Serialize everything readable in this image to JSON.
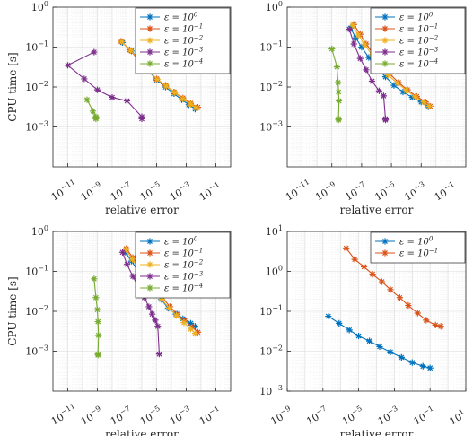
{
  "figure": {
    "xlabel": "relative error",
    "ylabel": "CPU time [s]"
  },
  "chart_data": [
    {
      "type": "line",
      "xscale": "log",
      "yscale": "log",
      "xlim_exp": [
        -12,
        0
      ],
      "ylim_exp": [
        -4,
        0
      ],
      "x_tick_labels": [
        "10^-11",
        "10^-9",
        "10^-7",
        "10^-5",
        "10^-3",
        "10^-1"
      ],
      "y_tick_labels": [
        "10^-3",
        "10^-2",
        "10^-1",
        "10^0"
      ],
      "xlabel": "relative error",
      "ylabel": "CPU time [s]",
      "grid": true,
      "legend_position": "top-right",
      "series": [
        {
          "name": "ε = 10^0",
          "color": "#0072BD",
          "points": [
            [
              5e-08,
              0.13
            ],
            [
              2e-07,
              0.08
            ],
            [
              8e-07,
              0.045
            ],
            [
              3e-06,
              0.025
            ],
            [
              1e-05,
              0.015
            ],
            [
              4e-05,
              0.01
            ],
            [
              0.00015,
              0.0068
            ],
            [
              0.0005,
              0.0048
            ],
            [
              0.0015,
              0.0036
            ],
            [
              0.004,
              0.0028
            ]
          ]
        },
        {
          "name": "ε = 10^-1",
          "color": "#D95319",
          "points": [
            [
              4e-08,
              0.14
            ],
            [
              1.5e-07,
              0.085
            ],
            [
              6e-07,
              0.048
            ],
            [
              2.5e-06,
              0.027
            ],
            [
              1e-05,
              0.016
            ],
            [
              4e-05,
              0.011
            ],
            [
              0.00015,
              0.0075
            ],
            [
              0.0006,
              0.0053
            ],
            [
              0.002,
              0.0039
            ],
            [
              0.006,
              0.0031
            ]
          ]
        },
        {
          "name": "ε = 10^-2",
          "color": "#EDB120",
          "points": [
            [
              4.5e-08,
              0.135
            ],
            [
              1.8e-07,
              0.082
            ],
            [
              7e-07,
              0.046
            ],
            [
              2.8e-06,
              0.026
            ],
            [
              1.1e-05,
              0.0155
            ],
            [
              4.5e-05,
              0.0105
            ],
            [
              0.00017,
              0.0072
            ],
            [
              0.0006,
              0.005
            ],
            [
              0.002,
              0.0037
            ],
            [
              0.005,
              0.003
            ]
          ]
        },
        {
          "name": "ε = 10^-3",
          "color": "#7E2F8E",
          "points": [
            [
              6e-10,
              0.075
            ],
            [
              1e-11,
              0.035
            ],
            [
              1.3e-10,
              0.016
            ],
            [
              1e-09,
              0.0085
            ],
            [
              1e-08,
              0.0055
            ],
            [
              1e-07,
              0.0045
            ],
            [
              1e-06,
              0.0018
            ],
            [
              1e-06,
              0.0016
            ]
          ]
        },
        {
          "name": "ε = 10^-4",
          "color": "#77AC30",
          "points": [
            [
              2e-10,
              0.0048
            ],
            [
              5e-10,
              0.0025
            ],
            [
              8e-10,
              0.0018
            ],
            [
              8e-10,
              0.0017
            ],
            [
              8e-10,
              0.0016
            ]
          ]
        }
      ]
    },
    {
      "type": "line",
      "xscale": "log",
      "yscale": "log",
      "xlim_exp": [
        -12,
        0
      ],
      "ylim_exp": [
        -4,
        0
      ],
      "x_tick_labels": [
        "10^-11",
        "10^-9",
        "10^-7",
        "10^-5",
        "10^-3",
        "10^-1"
      ],
      "y_tick_labels": [
        "10^-3",
        "10^-2",
        "10^-1",
        "10^0"
      ],
      "xlabel": "relative error",
      "ylabel": "",
      "grid": true,
      "legend_position": "top-right",
      "series": [
        {
          "name": "ε = 10^0",
          "color": "#0072BD",
          "points": [
            [
              1.8e-08,
              0.3
            ],
            [
              4e-08,
              0.17
            ],
            [
              1e-07,
              0.1
            ],
            [
              3e-07,
              0.055
            ],
            [
              1e-06,
              0.03
            ],
            [
              4e-06,
              0.018
            ],
            [
              1.5e-05,
              0.011
            ],
            [
              6e-05,
              0.0075
            ],
            [
              0.00025,
              0.0055
            ],
            [
              0.001,
              0.0042
            ],
            [
              0.003,
              0.0032
            ]
          ]
        },
        {
          "name": "ε = 10^-1",
          "color": "#D95319",
          "points": [
            [
              3e-08,
              0.37
            ],
            [
              8e-08,
              0.21
            ],
            [
              2e-07,
              0.12
            ],
            [
              6e-07,
              0.068
            ],
            [
              2e-06,
              0.037
            ],
            [
              8e-06,
              0.021
            ],
            [
              3e-05,
              0.013
            ],
            [
              0.00012,
              0.0085
            ],
            [
              0.0005,
              0.0058
            ],
            [
              0.002,
              0.0042
            ],
            [
              0.004,
              0.0033
            ]
          ]
        },
        {
          "name": "ε = 10^-2",
          "color": "#EDB120",
          "points": [
            [
              2.5e-08,
              0.35
            ],
            [
              6e-08,
              0.2
            ],
            [
              1.6e-07,
              0.115
            ],
            [
              5e-07,
              0.065
            ],
            [
              1.6e-06,
              0.035
            ],
            [
              6e-06,
              0.02
            ],
            [
              2.5e-05,
              0.0125
            ],
            [
              0.0001,
              0.0082
            ],
            [
              0.0004,
              0.0057
            ],
            [
              0.0015,
              0.0042
            ],
            [
              0.0035,
              0.0033
            ]
          ]
        },
        {
          "name": "ε = 10^-3",
          "color": "#7E2F8E",
          "points": [
            [
              1.5e-08,
              0.28
            ],
            [
              3e-08,
              0.12
            ],
            [
              8e-08,
              0.052
            ],
            [
              2e-07,
              0.027
            ],
            [
              5e-07,
              0.014
            ],
            [
              1.5e-06,
              0.008
            ],
            [
              3e-06,
              0.006
            ],
            [
              4e-06,
              0.0016
            ],
            [
              4e-06,
              0.0015
            ]
          ]
        },
        {
          "name": "ε = 10^-4",
          "color": "#77AC30",
          "points": [
            [
              1e-09,
              0.09
            ],
            [
              2.2e-09,
              0.032
            ],
            [
              2.6e-09,
              0.013
            ],
            [
              2.8e-09,
              0.0075
            ],
            [
              3e-09,
              0.0045
            ],
            [
              2.8e-09,
              0.0016
            ],
            [
              2.8e-09,
              0.0015
            ]
          ]
        }
      ]
    },
    {
      "type": "line",
      "xscale": "log",
      "yscale": "log",
      "xlim_exp": [
        -12,
        0
      ],
      "ylim_exp": [
        -4,
        0
      ],
      "x_tick_labels": [
        "10^-11",
        "10^-9",
        "10^-7",
        "10^-5",
        "10^-3",
        "10^-1"
      ],
      "y_tick_labels": [
        "10^-3",
        "10^-2",
        "10^-1",
        "10^0"
      ],
      "xlabel": "relative error",
      "ylabel": "CPU time [s]",
      "grid": true,
      "legend_position": "top-right",
      "series": [
        {
          "name": "ε = 10^0",
          "color": "#0072BD",
          "points": [
            [
              8e-08,
              0.3
            ],
            [
              2e-07,
              0.18
            ],
            [
              6e-07,
              0.1
            ],
            [
              2e-06,
              0.058
            ],
            [
              6e-06,
              0.033
            ],
            [
              2e-05,
              0.02
            ],
            [
              6e-05,
              0.012
            ],
            [
              0.0002,
              0.0085
            ],
            [
              0.0006,
              0.0065
            ],
            [
              0.002,
              0.005
            ],
            [
              0.004,
              0.0042
            ]
          ]
        },
        {
          "name": "ε = 10^-1",
          "color": "#D95319",
          "points": [
            [
              9e-08,
              0.37
            ],
            [
              2.5e-07,
              0.22
            ],
            [
              8e-07,
              0.12
            ],
            [
              2.5e-06,
              0.068
            ],
            [
              8e-06,
              0.038
            ],
            [
              2.5e-05,
              0.022
            ],
            [
              8e-05,
              0.013
            ],
            [
              0.00025,
              0.0085
            ],
            [
              0.0008,
              0.0058
            ],
            [
              0.0025,
              0.004
            ],
            [
              0.006,
              0.003
            ]
          ]
        },
        {
          "name": "ε = 10^-2",
          "color": "#EDB120",
          "points": [
            [
              8.5e-08,
              0.35
            ],
            [
              2.3e-07,
              0.2
            ],
            [
              7e-07,
              0.11
            ],
            [
              2.2e-06,
              0.062
            ],
            [
              7e-06,
              0.035
            ],
            [
              2.2e-05,
              0.02
            ],
            [
              7e-05,
              0.012
            ],
            [
              0.00022,
              0.0078
            ],
            [
              0.0007,
              0.0052
            ],
            [
              0.002,
              0.0036
            ],
            [
              0.004,
              0.0028
            ]
          ]
        },
        {
          "name": "ε = 10^-3",
          "color": "#7E2F8E",
          "points": [
            [
              5e-08,
              0.3
            ],
            [
              1e-07,
              0.15
            ],
            [
              2.5e-07,
              0.075
            ],
            [
              6e-07,
              0.04
            ],
            [
              1.5e-06,
              0.022
            ],
            [
              3e-06,
              0.013
            ],
            [
              5e-06,
              0.0085
            ],
            [
              8e-06,
              0.006
            ],
            [
              1.2e-05,
              0.0042
            ],
            [
              1.5e-05,
              0.00085
            ]
          ]
        },
        {
          "name": "ε = 10^-4",
          "color": "#77AC30",
          "points": [
            [
              6e-10,
              0.065
            ],
            [
              8e-10,
              0.022
            ],
            [
              1e-09,
              0.011
            ],
            [
              1.1e-09,
              0.0055
            ],
            [
              1.2e-09,
              0.0025
            ],
            [
              1.1e-09,
              0.00085
            ],
            [
              1.1e-09,
              0.0008
            ]
          ]
        }
      ]
    },
    {
      "type": "line",
      "xscale": "log",
      "yscale": "log",
      "xlim_exp": [
        -9,
        1
      ],
      "ylim_exp": [
        -3,
        1
      ],
      "x_tick_labels": [
        "10^-9",
        "10^-7",
        "10^-5",
        "10^-3",
        "10^-1",
        "10^1"
      ],
      "y_tick_labels": [
        "10^-3",
        "10^-2",
        "10^-1",
        "10^0",
        "10^1"
      ],
      "xlabel": "relative error",
      "ylabel": "",
      "grid": true,
      "legend_position": "top-right",
      "series": [
        {
          "name": "ε = 10^0",
          "color": "#0072BD",
          "points": [
            [
              2e-07,
              0.075
            ],
            [
              8e-07,
              0.05
            ],
            [
              3e-06,
              0.034
            ],
            [
              1e-05,
              0.024
            ],
            [
              4e-05,
              0.018
            ],
            [
              0.00015,
              0.013
            ],
            [
              0.0006,
              0.0095
            ],
            [
              0.0025,
              0.007
            ],
            [
              0.01,
              0.0052
            ],
            [
              0.04,
              0.0042
            ],
            [
              0.1,
              0.0038
            ]
          ]
        },
        {
          "name": "ε = 10^-1",
          "color": "#D95319",
          "points": [
            [
              2e-06,
              3.8
            ],
            [
              6e-06,
              2.0
            ],
            [
              2e-05,
              1.3
            ],
            [
              6e-05,
              0.85
            ],
            [
              0.0002,
              0.55
            ],
            [
              0.0006,
              0.35
            ],
            [
              0.002,
              0.22
            ],
            [
              0.006,
              0.14
            ],
            [
              0.02,
              0.09
            ],
            [
              0.06,
              0.06
            ],
            [
              0.2,
              0.045
            ],
            [
              0.4,
              0.042
            ]
          ]
        }
      ]
    }
  ]
}
